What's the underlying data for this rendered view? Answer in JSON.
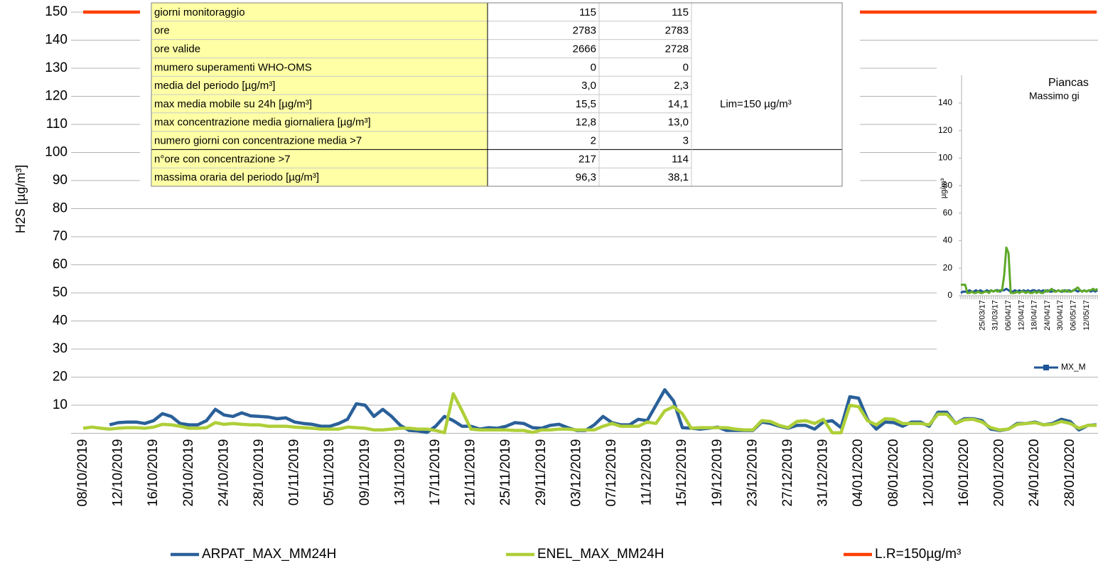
{
  "chart_data": [
    {
      "type": "line",
      "ylabel": "H2S [µg/m³]",
      "categories": [
        "08/10/2019",
        null,
        null,
        null,
        "12/10/2019",
        null,
        null,
        null,
        "16/10/2019",
        null,
        null,
        null,
        "20/10/2019",
        null,
        null,
        null,
        "24/10/2019",
        null,
        null,
        null,
        "28/10/2019",
        null,
        null,
        null,
        "01/11/2019",
        null,
        null,
        null,
        "05/11/2019",
        null,
        null,
        null,
        "09/11/2019",
        null,
        null,
        null,
        "13/11/2019",
        null,
        null,
        null,
        "17/11/2019",
        null,
        null,
        null,
        "21/11/2019",
        null,
        null,
        null,
        "25/11/2019",
        null,
        null,
        null,
        "29/11/2019",
        null,
        null,
        null,
        "03/12/2019",
        null,
        null,
        null,
        "07/12/2019",
        null,
        null,
        null,
        "11/12/2019",
        null,
        null,
        null,
        "15/12/2019",
        null,
        null,
        null,
        "19/12/2019",
        null,
        null,
        null,
        "23/12/2019",
        null,
        null,
        null,
        "27/12/2019",
        null,
        null,
        null,
        "31/12/2019",
        null,
        null,
        null,
        "04/01/2020",
        null,
        null,
        null,
        "08/01/2020",
        null,
        null,
        null,
        "12/01/2020",
        null,
        null,
        null,
        "16/01/2020",
        null,
        null,
        null,
        "20/01/2020",
        null,
        null,
        null,
        "24/01/2020",
        null,
        null,
        null,
        "28/01/2020",
        null,
        null,
        null
      ],
      "series": [
        {
          "name": "ARPAT_MAX_MM24H",
          "color": "#2a6099",
          "values": [
            null,
            null,
            null,
            3,
            3.8,
            4,
            4,
            3.5,
            4.5,
            7,
            6,
            3.5,
            3,
            3,
            4.5,
            8.5,
            6.5,
            6,
            7.3,
            6.2,
            6,
            5.8,
            5.2,
            5.5,
            4,
            3.5,
            3.2,
            2.5,
            2.5,
            3.5,
            5,
            10.5,
            10,
            6,
            8.5,
            6,
            2.8,
            1,
            0.8,
            0.3,
            2.5,
            6,
            4.5,
            2.5,
            2.5,
            1.5,
            2,
            1.8,
            2.5,
            3.8,
            3.5,
            2,
            1.8,
            2.8,
            3.2,
            2,
            1,
            1,
            3,
            6,
            3.8,
            3,
            3,
            5,
            4.5,
            10,
            15.5,
            11.5,
            2,
            1.8,
            1.5,
            1.8,
            2.2,
            1,
            1,
            1,
            1,
            4,
            3.5,
            2.5,
            1.8,
            2.8,
            2.8,
            1.5,
            4,
            4.5,
            2,
            13,
            12.5,
            5,
            1.5,
            4,
            3.8,
            2.5,
            4,
            4,
            2.5,
            7.5,
            7.5,
            3.5,
            5.2,
            5.2,
            4.5,
            1.5,
            1,
            1.5,
            3.5,
            3.5,
            4,
            3,
            3.5,
            5,
            4.2,
            1.2,
            2.8,
            3
          ]
        },
        {
          "name": "ENEL_MAX_MM24H",
          "color": "#aecf38",
          "values": [
            1.8,
            2.2,
            1.8,
            1.5,
            1.8,
            2,
            2,
            1.8,
            2.2,
            3.2,
            3,
            2.5,
            1.8,
            1.8,
            2,
            3.8,
            3.2,
            3.5,
            3.2,
            3,
            3,
            2.5,
            2.5,
            2.5,
            2.2,
            2,
            1.8,
            1.5,
            1.5,
            1.5,
            2.2,
            2,
            1.8,
            1.2,
            1.2,
            1.5,
            1.8,
            1.8,
            1.5,
            1.5,
            1,
            0.2,
            14.1,
            8,
            1.5,
            1.2,
            1.2,
            1.2,
            1.2,
            1,
            1,
            0.3,
            1.2,
            1.2,
            1.5,
            1.5,
            1.2,
            1.2,
            1.2,
            2.5,
            3.5,
            2.5,
            2.5,
            2.5,
            4,
            3.5,
            8,
            9.5,
            7,
            1.8,
            2,
            2,
            2,
            2,
            1.5,
            1.2,
            1.2,
            4.5,
            4.2,
            2.8,
            2,
            4.2,
            4.5,
            3.5,
            5,
            0.2,
            0.2,
            10,
            9.5,
            4.5,
            3,
            5.2,
            5,
            3.5,
            3.5,
            3.5,
            3,
            6.8,
            6.8,
            3.5,
            4.8,
            5,
            4,
            2,
            1.2,
            1.5,
            3.2,
            3.5,
            3.8,
            3,
            3.2,
            4.2,
            3.5,
            1.8,
            2.8,
            2.8
          ]
        },
        {
          "name": "L.R=150µg/m³",
          "color": "#ff3f00",
          "values": [
            150,
            150,
            150,
            150,
            150,
            150,
            150,
            150,
            150,
            150,
            150,
            150,
            150,
            150,
            150,
            150,
            150,
            150,
            150,
            150,
            150,
            150,
            150,
            150,
            150,
            150,
            150,
            150,
            150,
            150,
            150,
            150,
            150,
            150,
            150,
            150,
            150,
            150,
            150,
            150,
            150,
            150,
            150,
            150,
            150,
            150,
            150,
            150,
            150,
            150,
            150,
            150,
            150,
            150,
            150,
            150,
            150,
            150,
            150,
            150,
            150,
            150,
            150,
            150,
            150,
            150,
            150,
            150,
            150,
            150,
            150,
            150,
            150,
            150,
            150,
            150,
            150,
            150,
            150,
            150,
            150,
            150,
            150,
            150,
            150,
            150,
            150,
            150,
            150,
            150,
            150,
            150,
            150,
            150,
            150,
            150,
            150,
            150,
            150,
            150,
            150,
            150,
            150,
            150,
            150,
            150,
            150,
            150,
            150,
            150,
            150,
            150,
            150,
            150,
            150,
            150
          ]
        }
      ],
      "ylim": [
        0,
        150
      ],
      "yticks": [
        10,
        20,
        30,
        40,
        50,
        60,
        70,
        80,
        90,
        100,
        110,
        120,
        130,
        140,
        150
      ],
      "grid": true
    },
    {
      "type": "line",
      "title": "Piancas",
      "subtitle": "Massimo gi",
      "ylabel": "µg/m³",
      "categories": [
        null,
        null,
        null,
        null,
        null,
        null,
        null,
        null,
        null,
        null,
        "25/03/17",
        null,
        null,
        null,
        null,
        null,
        "31/03/17",
        null,
        null,
        null,
        null,
        null,
        "06/04/17",
        null,
        null,
        null,
        null,
        null,
        "12/04/17",
        null,
        null,
        null,
        null,
        null,
        "18/04/17",
        null,
        null,
        null,
        null,
        null,
        "24/04/17",
        null,
        null,
        null,
        null,
        null,
        "30/04/17",
        null,
        null,
        null,
        null,
        null,
        "06/05/17",
        null,
        null,
        null,
        null,
        null,
        "12/05/17",
        null,
        null,
        null,
        null,
        null
      ],
      "series": [
        {
          "name": "MX_M",
          "color": "#1f5597",
          "values": [
            2,
            3,
            3,
            3,
            4,
            3,
            3,
            4,
            3,
            4,
            3,
            3,
            4,
            3,
            4,
            3,
            4,
            4,
            3,
            4,
            4,
            5,
            4,
            3,
            3,
            4,
            3,
            4,
            3,
            4,
            3,
            4,
            3,
            4,
            4,
            3,
            4,
            3,
            4,
            3,
            4,
            3,
            3,
            4,
            3,
            4,
            3,
            3,
            4,
            3,
            4,
            3,
            4,
            4,
            3,
            4,
            3,
            4,
            3,
            4,
            3,
            4,
            3,
            4
          ]
        },
        {
          "color": "#5ea92a",
          "values": [
            8,
            8,
            8,
            2,
            2,
            3,
            2,
            2,
            3,
            2,
            2,
            3,
            3,
            2,
            4,
            3,
            4,
            3,
            4,
            4,
            15,
            35,
            31,
            2,
            2,
            2,
            3,
            2,
            3,
            3,
            2,
            3,
            2,
            2,
            3,
            2,
            3,
            2,
            2,
            4,
            3,
            4,
            5,
            3,
            3,
            4,
            3,
            4,
            3,
            4,
            3,
            3,
            4,
            5,
            6,
            4,
            3,
            4,
            3,
            4,
            4,
            5,
            4,
            5
          ]
        }
      ],
      "ylim": [
        0,
        150
      ],
      "yticks": [
        0,
        20,
        40,
        60,
        80,
        100,
        120,
        140
      ],
      "grid": false
    }
  ],
  "table": {
    "rows": [
      [
        "giorni monitoraggio",
        "115",
        "115"
      ],
      [
        "ore",
        "2783",
        "2783"
      ],
      [
        "ore valide",
        "2666",
        "2728"
      ],
      [
        "mumero superamenti WHO-OMS",
        "0",
        "0"
      ],
      [
        "media del periodo [µg/m³]",
        "3,0",
        "2,3"
      ],
      [
        "max media mobile su 24h [µg/m³]",
        "15,5",
        "14,1",
        "Lim=150 µg/m³"
      ],
      [
        "max concentrazione media giornaliera [µg/m³]",
        "12,8",
        "13,0"
      ],
      [
        "numero giorni con concentrazione media >7",
        "2",
        "3"
      ],
      [
        "n°ore con concentrazione >7",
        "217",
        "114"
      ],
      [
        "massima oraria del periodo [µg/m³]",
        "96,3",
        "38,1"
      ]
    ]
  }
}
